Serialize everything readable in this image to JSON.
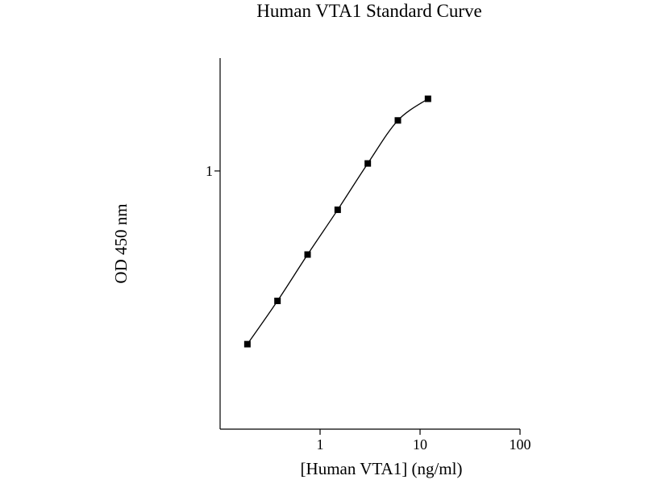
{
  "chart_data": {
    "type": "line",
    "title": "Human VTA1 Standard Curve",
    "xlabel": "[Human VTA1] (ng/ml)",
    "ylabel": "OD 450 nm",
    "x_scale": "log",
    "y_scale": "log",
    "xlim": [
      0.1,
      100
    ],
    "ylim": [
      0.135,
      2.4
    ],
    "x_ticks": [
      {
        "value": 1,
        "label": "1"
      },
      {
        "value": 10,
        "label": "10"
      },
      {
        "value": 100,
        "label": "100"
      }
    ],
    "y_ticks": [
      {
        "value": 1,
        "label": "1"
      }
    ],
    "grid": false,
    "series": [
      {
        "marker": "square",
        "color": "#000000",
        "x": [
          0.1875,
          0.375,
          0.75,
          1.5,
          3,
          6,
          12
        ],
        "y": [
          0.261,
          0.365,
          0.523,
          0.74,
          1.06,
          1.48,
          1.75
        ]
      }
    ]
  }
}
